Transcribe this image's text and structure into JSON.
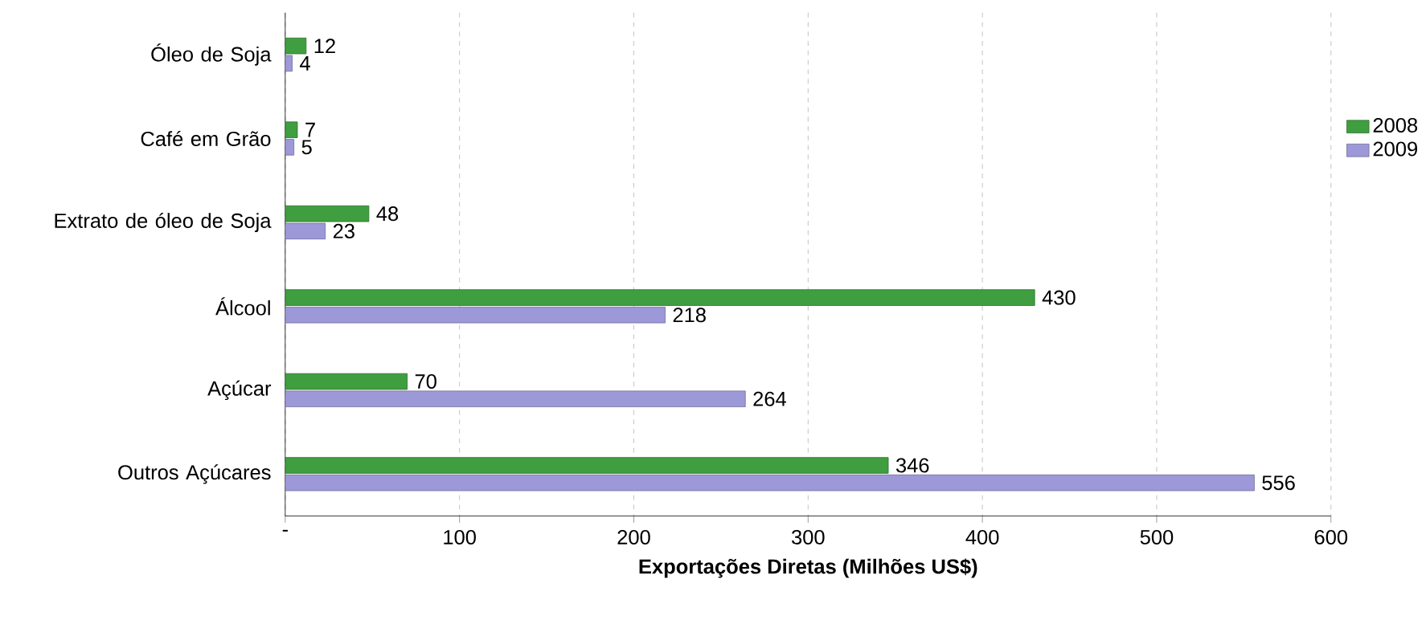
{
  "chart_data": {
    "type": "bar",
    "orientation": "horizontal",
    "categories": [
      "Óleo de Soja",
      "Café em Grão",
      "Extrato de óleo de Soja",
      "Álcool",
      "Açúcar",
      "Outros Açúcares"
    ],
    "series": [
      {
        "name": "2008",
        "color": "#3f9e3f",
        "values": [
          12,
          7,
          48,
          430,
          70,
          346
        ]
      },
      {
        "name": "2009",
        "color": "#9d99d8",
        "values": [
          4,
          5,
          23,
          218,
          264,
          556
        ]
      }
    ],
    "xlabel": "Exportações Diretas (Milhões US$)",
    "xlim": [
      0,
      600
    ],
    "xticks": [
      {
        "value": 0,
        "label": "-"
      },
      100,
      200,
      300,
      400,
      500,
      600
    ],
    "grid": "x",
    "legend": "right",
    "data_labels": true
  }
}
